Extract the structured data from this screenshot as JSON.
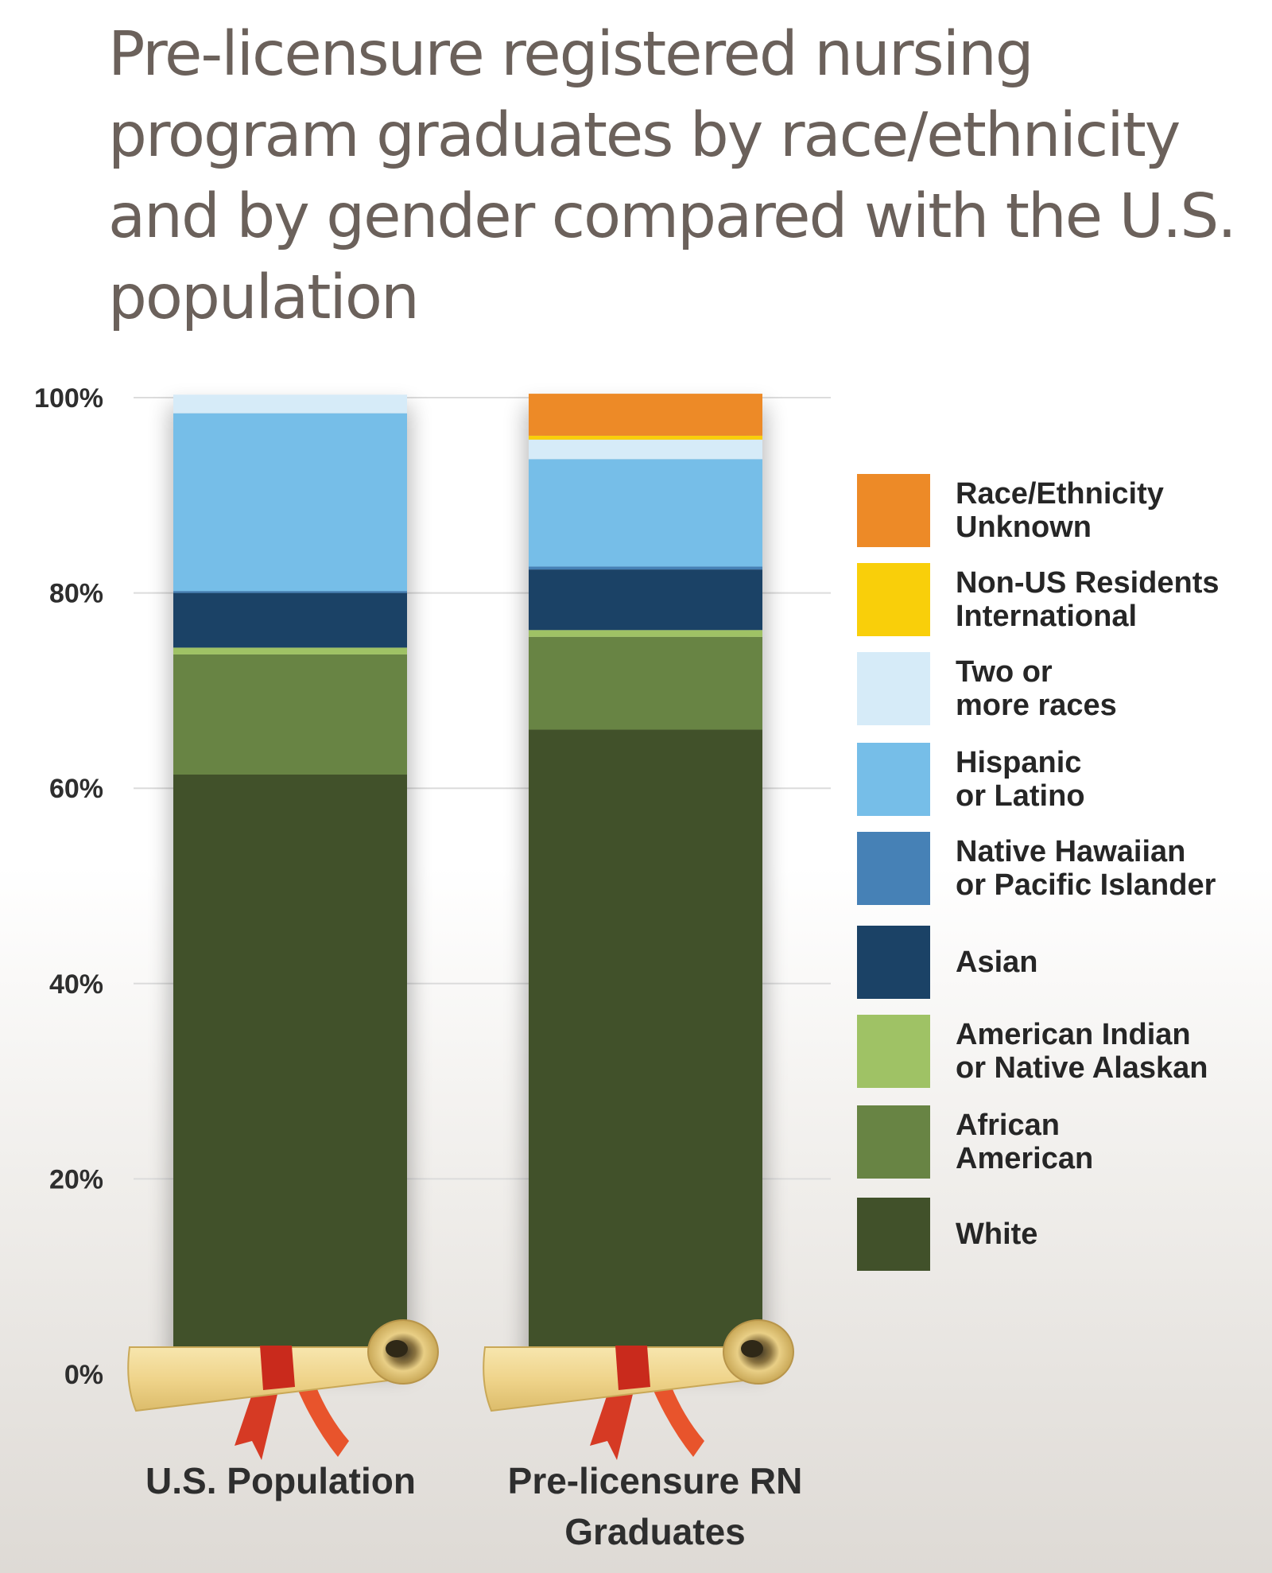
{
  "chart_data": {
    "type": "bar",
    "stacked": true,
    "title": "Pre-licensure registered nursing program graduates by race/ethnicity and by gender compared with the U.S. population",
    "categories": [
      "U.S. Population",
      "Pre-licensure RN Graduates"
    ],
    "y_ticks": [
      "0%",
      "20%",
      "40%",
      "60%",
      "80%",
      "100%"
    ],
    "ylim": [
      0,
      100
    ],
    "grid": true,
    "legend_position": "right",
    "series": [
      {
        "name": "White",
        "color": "#41512a",
        "values": [
          61.4,
          66.0
        ]
      },
      {
        "name": "African American",
        "color": "#688444",
        "values": [
          12.3,
          9.5
        ]
      },
      {
        "name": "American Indian or Native Alaskan",
        "color": "#9fc265",
        "values": [
          0.7,
          0.7
        ]
      },
      {
        "name": "Asian",
        "color": "#1b4266",
        "values": [
          5.6,
          6.2
        ]
      },
      {
        "name": "Native Hawaiian or Pacific Islander",
        "color": "#4681b6",
        "values": [
          0.2,
          0.3
        ]
      },
      {
        "name": "Hispanic or Latino",
        "color": "#76bee8",
        "values": [
          18.2,
          11.0
        ]
      },
      {
        "name": "Two or more races",
        "color": "#d6ebf8",
        "values": [
          1.9,
          2.0
        ]
      },
      {
        "name": "Non-US Residents International",
        "color": "#f9cf0a",
        "values": [
          0,
          0.4
        ]
      },
      {
        "name": "Race/Ethnicity Unknown",
        "color": "#ed8a27",
        "values": [
          0,
          4.3
        ]
      }
    ]
  },
  "legend": [
    {
      "label": "Race/Ethnicity\nUnknown",
      "color": "#ed8a27"
    },
    {
      "label": "Non-US Residents\nInternational",
      "color": "#f9cf0a"
    },
    {
      "label": "Two or\nmore races",
      "color": "#d6ebf8"
    },
    {
      "label": "Hispanic\nor Latino",
      "color": "#76bee8"
    },
    {
      "label": "Native Hawaiian\nor Pacific Islander",
      "color": "#4681b6"
    },
    {
      "label": "Asian",
      "color": "#1b4266"
    },
    {
      "label": "American Indian\nor Native Alaskan",
      "color": "#9fc265"
    },
    {
      "label": "African\nAmerican",
      "color": "#688444"
    },
    {
      "label": "White",
      "color": "#41512a"
    }
  ],
  "category_labels": [
    [
      "U.S. Population"
    ],
    [
      "Pre-licensure RN",
      "Graduates"
    ]
  ],
  "colors": {
    "gridline": "#dcdcdc",
    "scroll_paper": "#f1d893",
    "ribbon": "#d63a24",
    "title_text": "#6b615b"
  }
}
